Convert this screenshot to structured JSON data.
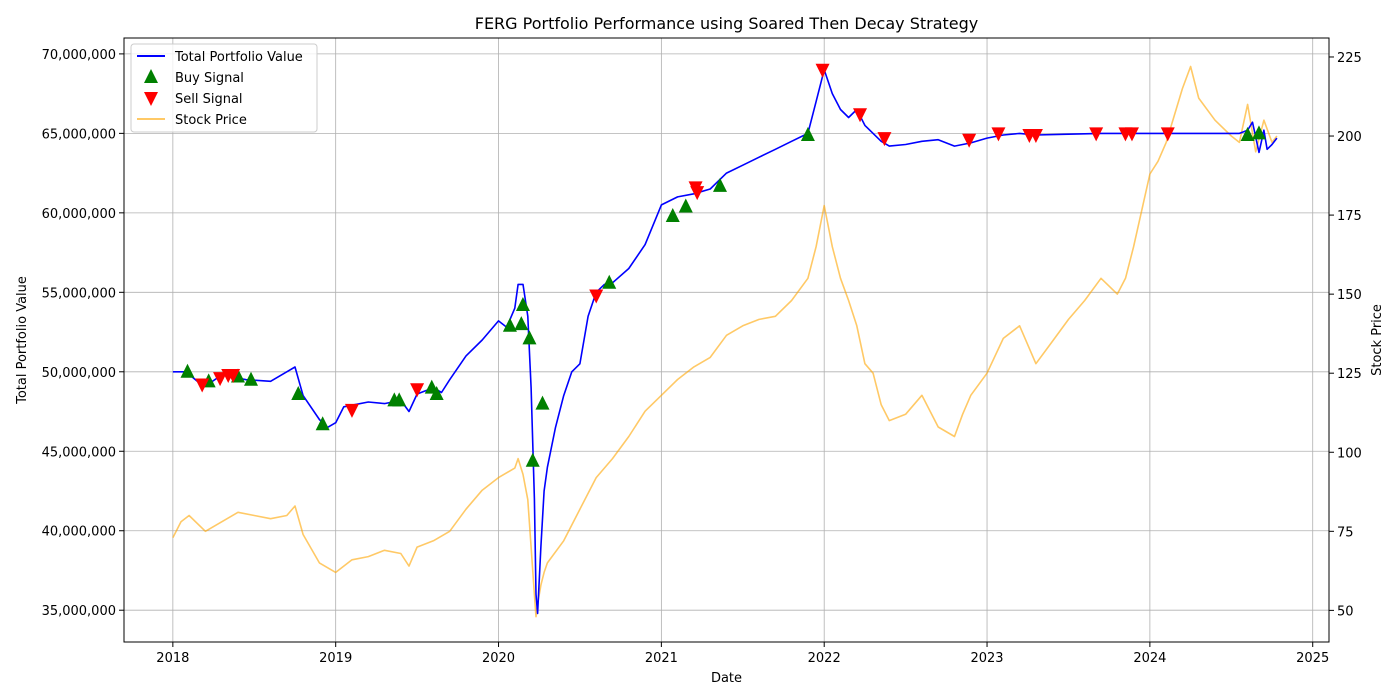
{
  "chart_data": {
    "type": "line",
    "title": "FERG Portfolio Performance using Soared Then Decay Strategy",
    "xlabel": "Date",
    "ylabel": "Total Portfolio Value",
    "y2label": "Stock Price",
    "xlim": [
      2017.7,
      2025.1
    ],
    "ylim": [
      33000000,
      71000000
    ],
    "y2lim": [
      40,
      231
    ],
    "x_ticks": [
      2018,
      2019,
      2020,
      2021,
      2022,
      2023,
      2024,
      2025
    ],
    "y_ticks": [
      35000000,
      40000000,
      45000000,
      50000000,
      55000000,
      60000000,
      65000000,
      70000000
    ],
    "y_tick_labels": [
      "35,000,000",
      "40,000,000",
      "45,000,000",
      "50,000,000",
      "55,000,000",
      "60,000,000",
      "65,000,000",
      "70,000,000"
    ],
    "y2_ticks": [
      50,
      75,
      100,
      125,
      150,
      175,
      200,
      225
    ],
    "grid": true,
    "legend_position": "top-left",
    "legend": [
      "Total Portfolio Value",
      "Buy Signal",
      "Sell Signal",
      "Stock Price"
    ],
    "colors": {
      "portfolio": "#0000ff",
      "buy": "#008000",
      "sell": "#ff0000",
      "stock": "#ffa500"
    },
    "portfolio": {
      "name": "Total Portfolio Value",
      "x": [
        2018.0,
        2018.08,
        2018.15,
        2018.2,
        2018.3,
        2018.45,
        2018.6,
        2018.7,
        2018.75,
        2018.8,
        2018.9,
        2018.95,
        2019.0,
        2019.05,
        2019.1,
        2019.2,
        2019.3,
        2019.4,
        2019.45,
        2019.5,
        2019.6,
        2019.65,
        2019.7,
        2019.8,
        2019.9,
        2020.0,
        2020.05,
        2020.1,
        2020.12,
        2020.15,
        2020.18,
        2020.2,
        2020.22,
        2020.23,
        2020.24,
        2020.26,
        2020.28,
        2020.3,
        2020.35,
        2020.4,
        2020.45,
        2020.5,
        2020.55,
        2020.6,
        2020.65,
        2020.7,
        2020.8,
        2020.9,
        2021.0,
        2021.1,
        2021.2,
        2021.3,
        2021.4,
        2021.5,
        2021.6,
        2021.7,
        2021.8,
        2021.9,
        2021.95,
        2022.0,
        2022.05,
        2022.1,
        2022.15,
        2022.2,
        2022.25,
        2022.3,
        2022.35,
        2022.4,
        2022.5,
        2022.6,
        2022.7,
        2022.8,
        2022.9,
        2023.0,
        2023.1,
        2023.2,
        2023.3,
        2023.5,
        2023.7,
        2023.9,
        2024.0,
        2024.2,
        2024.4,
        2024.55,
        2024.6,
        2024.63,
        2024.67,
        2024.7,
        2024.72,
        2024.75,
        2024.78
      ],
      "values": [
        50000000,
        50000000,
        49400000,
        49100000,
        49800000,
        49500000,
        49400000,
        50000000,
        50300000,
        48500000,
        47000000,
        46500000,
        46800000,
        47800000,
        47900000,
        48100000,
        48000000,
        48200000,
        47500000,
        48600000,
        49000000,
        48700000,
        49500000,
        51000000,
        52000000,
        53200000,
        52800000,
        54000000,
        55500000,
        55500000,
        53500000,
        49000000,
        42000000,
        36000000,
        34800000,
        39000000,
        42500000,
        44000000,
        46500000,
        48500000,
        50000000,
        50500000,
        53500000,
        55000000,
        55500000,
        55600000,
        56500000,
        58000000,
        60500000,
        61000000,
        61200000,
        61500000,
        62500000,
        63000000,
        63500000,
        64000000,
        64500000,
        65000000,
        67000000,
        69000000,
        67500000,
        66500000,
        66000000,
        66500000,
        65500000,
        65000000,
        64500000,
        64200000,
        64300000,
        64500000,
        64600000,
        64200000,
        64400000,
        64700000,
        64900000,
        65000000,
        64900000,
        64950000,
        65000000,
        65000000,
        65000000,
        65000000,
        65000000,
        65000000,
        65200000,
        65700000,
        63800000,
        65200000,
        64000000,
        64300000,
        64700000
      ]
    },
    "stock_price": {
      "name": "Stock Price",
      "x": [
        2018.0,
        2018.05,
        2018.1,
        2018.2,
        2018.3,
        2018.4,
        2018.5,
        2018.6,
        2018.7,
        2018.75,
        2018.8,
        2018.9,
        2019.0,
        2019.1,
        2019.2,
        2019.3,
        2019.4,
        2019.45,
        2019.5,
        2019.6,
        2019.7,
        2019.8,
        2019.9,
        2020.0,
        2020.1,
        2020.12,
        2020.15,
        2020.18,
        2020.2,
        2020.22,
        2020.23,
        2020.24,
        2020.26,
        2020.28,
        2020.3,
        2020.4,
        2020.5,
        2020.6,
        2020.7,
        2020.8,
        2020.9,
        2021.0,
        2021.1,
        2021.2,
        2021.3,
        2021.4,
        2021.5,
        2021.6,
        2021.7,
        2021.8,
        2021.9,
        2021.95,
        2022.0,
        2022.05,
        2022.1,
        2022.15,
        2022.2,
        2022.25,
        2022.3,
        2022.35,
        2022.4,
        2022.5,
        2022.6,
        2022.7,
        2022.8,
        2022.85,
        2022.9,
        2023.0,
        2023.1,
        2023.2,
        2023.3,
        2023.4,
        2023.5,
        2023.6,
        2023.7,
        2023.8,
        2023.85,
        2023.9,
        2024.0,
        2024.05,
        2024.1,
        2024.2,
        2024.25,
        2024.3,
        2024.4,
        2024.5,
        2024.55,
        2024.6,
        2024.65,
        2024.7,
        2024.75,
        2024.78
      ],
      "values": [
        73,
        78,
        80,
        75,
        78,
        81,
        80,
        79,
        80,
        83,
        74,
        65,
        62,
        66,
        67,
        69,
        68,
        64,
        70,
        72,
        75,
        82,
        88,
        92,
        95,
        98,
        93,
        85,
        70,
        55,
        48,
        52,
        58,
        62,
        65,
        72,
        82,
        92,
        98,
        105,
        113,
        118,
        123,
        127,
        130,
        137,
        140,
        142,
        143,
        148,
        155,
        165,
        178,
        165,
        155,
        148,
        140,
        128,
        125,
        115,
        110,
        112,
        118,
        108,
        105,
        112,
        118,
        125,
        136,
        140,
        128,
        135,
        142,
        148,
        155,
        150,
        155,
        165,
        188,
        192,
        198,
        215,
        222,
        212,
        205,
        200,
        198,
        210,
        195,
        205,
        198,
        200
      ]
    },
    "buy_signals": {
      "name": "Buy Signal",
      "x": [
        2018.09,
        2018.22,
        2018.4,
        2018.48,
        2018.77,
        2018.92,
        2019.36,
        2019.39,
        2019.59,
        2019.62,
        2020.07,
        2020.14,
        2020.15,
        2020.19,
        2020.21,
        2020.27,
        2020.68,
        2021.07,
        2021.15,
        2021.36,
        2021.9,
        2024.6,
        2024.67
      ],
      "values": [
        50000000,
        49400000,
        49700000,
        49500000,
        48600000,
        46700000,
        48200000,
        48200000,
        49000000,
        48600000,
        52900000,
        53000000,
        54200000,
        52100000,
        44400000,
        48000000,
        55600000,
        59800000,
        60400000,
        61700000,
        64900000,
        64900000,
        65000000
      ]
    },
    "sell_signals": {
      "name": "Sell Signal",
      "x": [
        2018.18,
        2018.29,
        2018.34,
        2018.37,
        2019.1,
        2019.5,
        2020.6,
        2021.21,
        2021.22,
        2021.99,
        2022.22,
        2022.37,
        2022.89,
        2023.07,
        2023.26,
        2023.3,
        2023.67,
        2023.85,
        2023.89,
        2024.11
      ],
      "values": [
        49200000,
        49600000,
        49800000,
        49800000,
        47600000,
        48900000,
        54800000,
        61600000,
        61300000,
        69000000,
        66200000,
        64700000,
        64600000,
        65000000,
        64900000,
        64900000,
        65000000,
        65000000,
        65000000,
        65000000
      ]
    }
  }
}
